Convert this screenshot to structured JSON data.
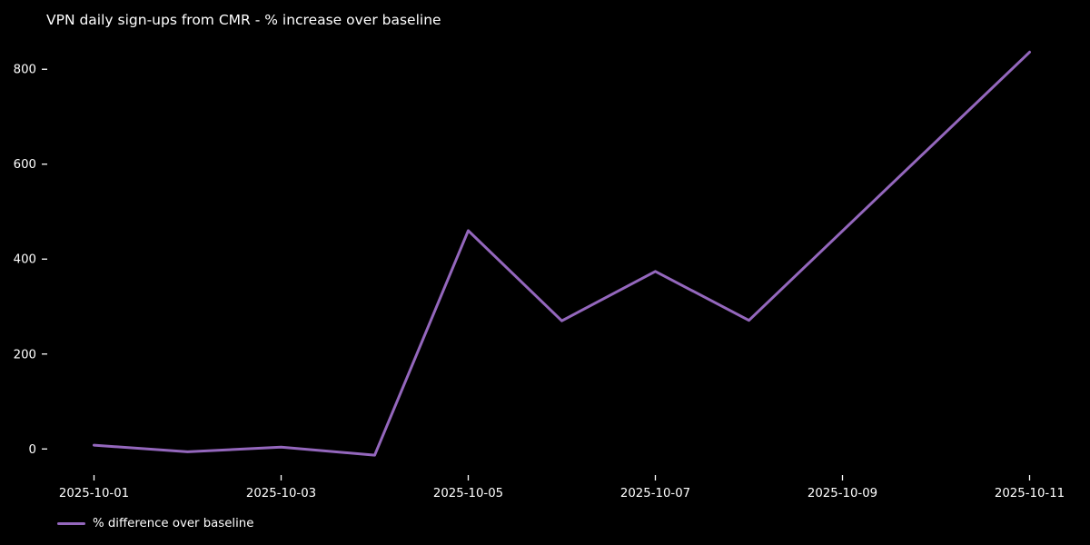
{
  "window": {
    "background_color": "#000000",
    "text_color": "#ffffff"
  },
  "chart_data": {
    "type": "line",
    "title": "VPN daily sign-ups from CMR - % increase over baseline",
    "xlabel": "",
    "ylabel": "",
    "x": [
      "2025-10-01",
      "2025-10-02",
      "2025-10-03",
      "2025-10-04",
      "2025-10-05",
      "2025-10-06",
      "2025-10-07",
      "2025-10-08",
      "2025-10-11"
    ],
    "series": [
      {
        "name": "% difference over baseline",
        "color": "#9467bd",
        "line_width": 3,
        "values": [
          8,
          -6,
          4,
          -13,
          460,
          270,
          374,
          271,
          836
        ]
      }
    ],
    "x_tick_labels": [
      "2025-10-01",
      "2025-10-03",
      "2025-10-05",
      "2025-10-07",
      "2025-10-09",
      "2025-10-11"
    ],
    "y_ticks": [
      0,
      200,
      400,
      600,
      800
    ],
    "xlim_day_offsets": [
      -0.5,
      10.5
    ],
    "ylim": [
      -55,
      877
    ],
    "grid": false,
    "axis_spines": false,
    "tick_color": "#ffffff",
    "legend_position": "lower-left-below-axes"
  }
}
